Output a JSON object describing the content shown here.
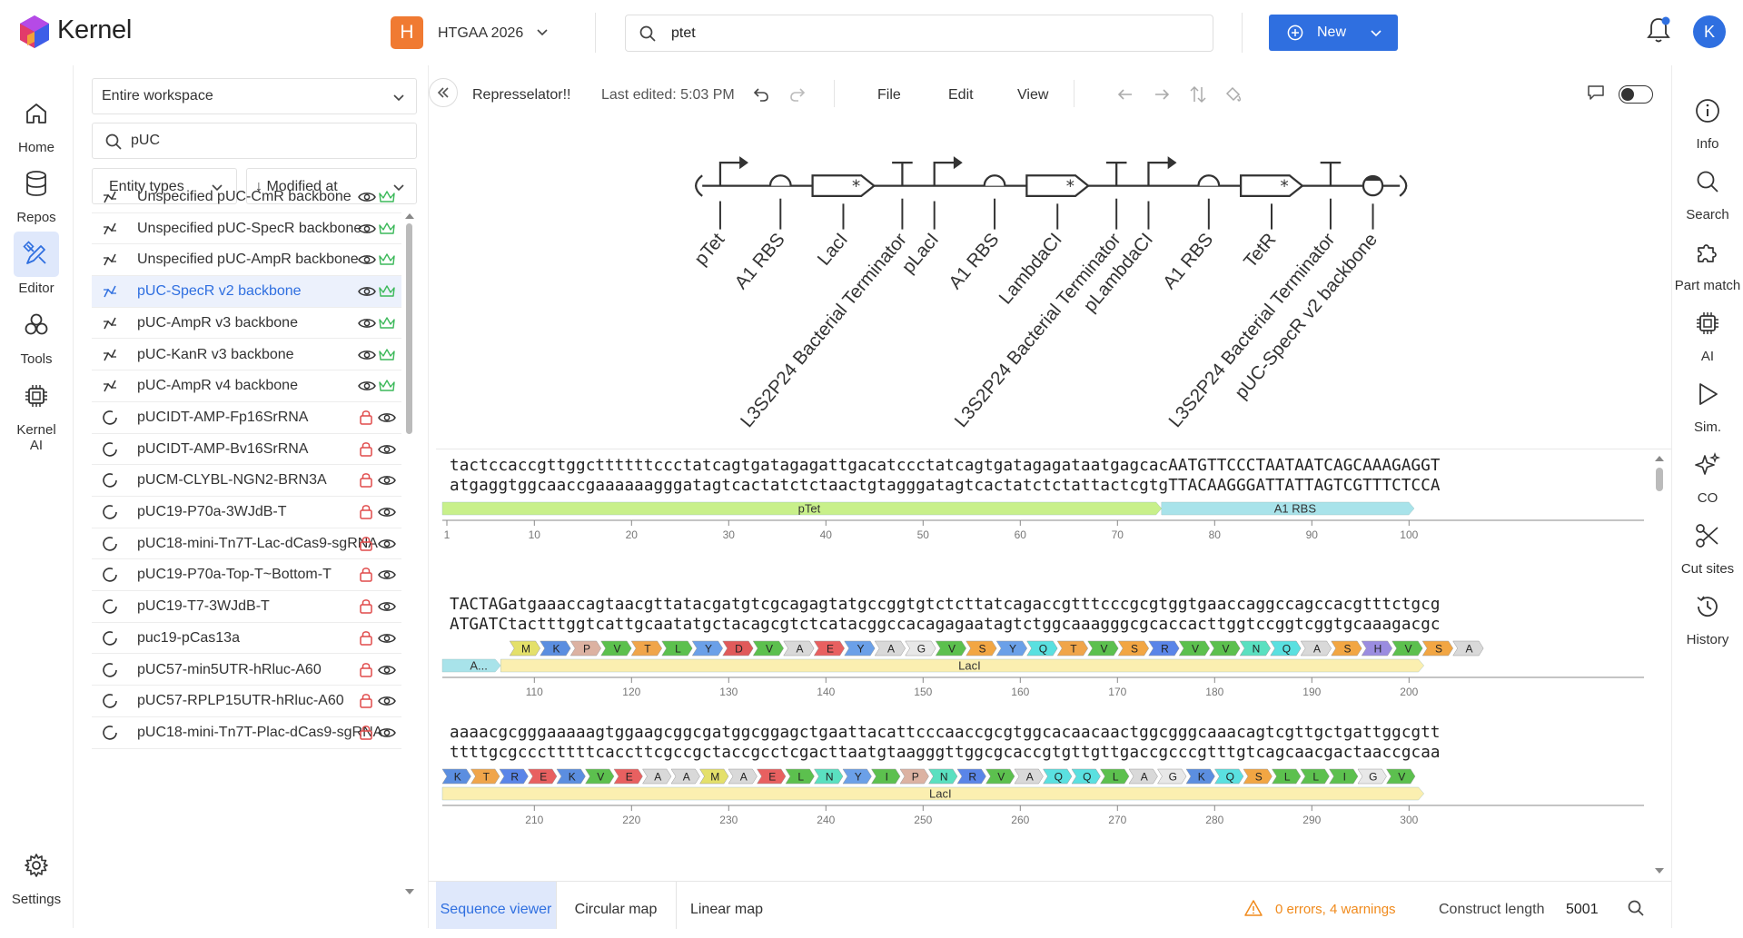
{
  "brand": {
    "name": "Kernel"
  },
  "workspace": {
    "initial": "H",
    "name": "HTGAA 2026"
  },
  "search": {
    "value": "ptet"
  },
  "new_button": {
    "label": "New"
  },
  "user": {
    "initial": "K"
  },
  "left_nav": [
    {
      "label": "Home",
      "icon": "home-icon"
    },
    {
      "label": "Repos",
      "icon": "database-icon"
    },
    {
      "label": "Editor",
      "icon": "editor-icon",
      "active": true
    },
    {
      "label": "Tools",
      "icon": "tools-icon"
    },
    {
      "label": "Kernel AI",
      "icon": "chip-icon"
    },
    {
      "label": "Settings",
      "icon": "gear-icon"
    }
  ],
  "sidebar": {
    "scope": "Entire workspace",
    "search_value": "pUC",
    "filter_entity": "Entity types",
    "sort": "↓ Modified at",
    "items": [
      {
        "label": "Unspecified pUC-CmR backbone",
        "kind": "construct",
        "badge": "crown"
      },
      {
        "label": "Unspecified pUC-SpecR backbone",
        "kind": "construct",
        "badge": "crown"
      },
      {
        "label": "Unspecified pUC-AmpR backbone",
        "kind": "construct",
        "badge": "crown"
      },
      {
        "label": "pUC-SpecR v2 backbone",
        "kind": "construct",
        "badge": "crown",
        "selected": true
      },
      {
        "label": "pUC-AmpR v3 backbone",
        "kind": "construct",
        "badge": "crown"
      },
      {
        "label": "pUC-KanR v3 backbone",
        "kind": "construct",
        "badge": "crown"
      },
      {
        "label": "pUC-AmpR v4 backbone",
        "kind": "construct",
        "badge": "crown"
      },
      {
        "label": "pUCIDT-AMP-Fp16SrRNA",
        "kind": "plasmid",
        "badge": "lock"
      },
      {
        "label": "pUCIDT-AMP-Bv16SrRNA",
        "kind": "plasmid",
        "badge": "lock"
      },
      {
        "label": "pUCM-CLYBL-NGN2-BRN3A",
        "kind": "plasmid",
        "badge": "lock"
      },
      {
        "label": "pUC19-P70a-3WJdB-T",
        "kind": "plasmid",
        "badge": "lock"
      },
      {
        "label": "pUC18-mini-Tn7T-Lac-dCas9-sgRNA",
        "kind": "plasmid",
        "badge": "lock"
      },
      {
        "label": "pUC19-P70a-Top-T~Bottom-T",
        "kind": "plasmid",
        "badge": "lock"
      },
      {
        "label": "pUC19-T7-3WJdB-T",
        "kind": "plasmid",
        "badge": "lock"
      },
      {
        "label": "puc19-pCas13a",
        "kind": "plasmid",
        "badge": "lock"
      },
      {
        "label": "pUC57-min5UTR-hRluc-A60",
        "kind": "plasmid",
        "badge": "lock"
      },
      {
        "label": "pUC57-RPLP15UTR-hRluc-A60",
        "kind": "plasmid",
        "badge": "lock"
      },
      {
        "label": "pUC18-mini-Tn7T-Plac-dCas9-sgRNA",
        "kind": "plasmid",
        "badge": "lock"
      }
    ]
  },
  "toolbar": {
    "doc_title": "Represselator!!",
    "last_edited": "Last edited: 5:03 PM",
    "menus": [
      "File",
      "Edit",
      "View"
    ]
  },
  "map": {
    "parts": [
      {
        "label": "pTet",
        "glyph": "promoter"
      },
      {
        "label": "A1 RBS",
        "glyph": "rbs"
      },
      {
        "label": "LacI",
        "glyph": "cds"
      },
      {
        "label": "L3S2P24 Bacterial Terminator",
        "glyph": "terminator"
      },
      {
        "label": "pLacI",
        "glyph": "promoter"
      },
      {
        "label": "A1 RBS",
        "glyph": "rbs"
      },
      {
        "label": "LambdaCI",
        "glyph": "cds"
      },
      {
        "label": "L3S2P24 Bacterial Terminator",
        "glyph": "terminator"
      },
      {
        "label": "pLambdaCI",
        "glyph": "promoter"
      },
      {
        "label": "A1 RBS",
        "glyph": "rbs"
      },
      {
        "label": "TetR",
        "glyph": "cds"
      },
      {
        "label": "L3S2P24 Bacterial Terminator",
        "glyph": "terminator"
      },
      {
        "label": "pUC-SpecR v2 backbone",
        "glyph": "origin"
      }
    ]
  },
  "sequence": {
    "blocks": [
      {
        "top": "tactccaccgttggcttttttccctatcagtgatagagattgacatccctatcagtgatagagataatgagcacAATGTTCCCTAATAATCAGCAAAGAGGT",
        "bottom": "atgaggtggcaaccgaaaaaagggatagtcactatctctaactgtagggatagtcactatctctattactcgtgTTACAAGGGATTATTAGTCGTTTCTCCA",
        "features": [
          {
            "label": "pTet",
            "color": "#c8f08a",
            "start": 0,
            "end": 74
          },
          {
            "label": "A1 RBS",
            "color": "#a8e3ea",
            "start": 74,
            "end": 100
          }
        ],
        "ticks": [
          "1",
          "10",
          "20",
          "30",
          "40",
          "50",
          "60",
          "70",
          "80",
          "90",
          "100"
        ]
      },
      {
        "top": "TACTAGatgaaaccagtaacgttatacgatgtcgcagagtatgccggtgtctcttatcagaccgtttcccgcgtggtgaaccaggccagccacgtttctgcg",
        "bottom": "ATGATCtactttggtcattgcaatatgctacagcgtctcatacggccacagagaatagtctggcaaagggcgcaccacttggtccggtcggtgcaaagacgc",
        "aa": [
          "M",
          "K",
          "P",
          "V",
          "T",
          "L",
          "Y",
          "D",
          "V",
          "A",
          "E",
          "Y",
          "A",
          "G",
          "V",
          "S",
          "Y",
          "Q",
          "T",
          "V",
          "S",
          "R",
          "V",
          "V",
          "N",
          "Q",
          "A",
          "S",
          "H",
          "V",
          "S",
          "A"
        ],
        "features": [
          {
            "label": "A...",
            "color": "#a8e3ea",
            "start": 0,
            "end": 6
          },
          {
            "label": "LacI",
            "color": "#fbefb0",
            "start": 6,
            "end": 101
          }
        ],
        "ticks": [
          "110",
          "120",
          "130",
          "140",
          "150",
          "160",
          "170",
          "180",
          "190",
          "200"
        ]
      },
      {
        "top": "aaaacgcgggaaaaagtggaagcggcgatggcggagctgaattacattcccaaccgcgtggcacaacaactggcgggcaaacagtcgttgctgattggcgtt",
        "bottom": "ttttgcgccctttttcaccttcgccgctaccgcctcgacttaatgtaagggttggcgcaccgtgttgttgaccgcccgtttgtcagcaacgactaaccgcaa",
        "aa": [
          "K",
          "T",
          "R",
          "E",
          "K",
          "V",
          "E",
          "A",
          "A",
          "M",
          "A",
          "E",
          "L",
          "N",
          "Y",
          "I",
          "P",
          "N",
          "R",
          "V",
          "A",
          "Q",
          "Q",
          "L",
          "A",
          "G",
          "K",
          "Q",
          "S",
          "L",
          "L",
          "I",
          "G",
          "V"
        ],
        "features": [
          {
            "label": "LacI",
            "color": "#fbefb0",
            "start": 0,
            "end": 101
          }
        ],
        "ticks": [
          "210",
          "220",
          "230",
          "240",
          "250",
          "260",
          "270",
          "280",
          "290",
          "300"
        ]
      }
    ]
  },
  "bottom_bar": {
    "tabs": [
      "Sequence viewer",
      "Circular map",
      "Linear map"
    ],
    "active_tab": "Sequence viewer",
    "warnings": "0 errors, 4 warnings",
    "length_label": "Construct length",
    "length_value": "5001"
  },
  "right_nav": [
    {
      "label": "Info",
      "icon": "info-icon"
    },
    {
      "label": "Search",
      "icon": "search-icon"
    },
    {
      "label": "Part match",
      "icon": "puzzle-icon"
    },
    {
      "label": "AI",
      "icon": "chip-icon"
    },
    {
      "label": "Sim.",
      "icon": "play-icon"
    },
    {
      "label": "CO",
      "icon": "sparkle-icon"
    },
    {
      "label": "Cut sites",
      "icon": "scissors-icon"
    },
    {
      "label": "History",
      "icon": "history-icon"
    }
  ],
  "colors": {
    "accent": "#2f6fe0",
    "warning": "#f08a1c",
    "crown": "#3cb95a",
    "lock": "#e04a4a",
    "ptet_feature": "#c8f08a",
    "rbs_feature": "#a8e3ea",
    "laci_feature": "#fbefb0"
  }
}
